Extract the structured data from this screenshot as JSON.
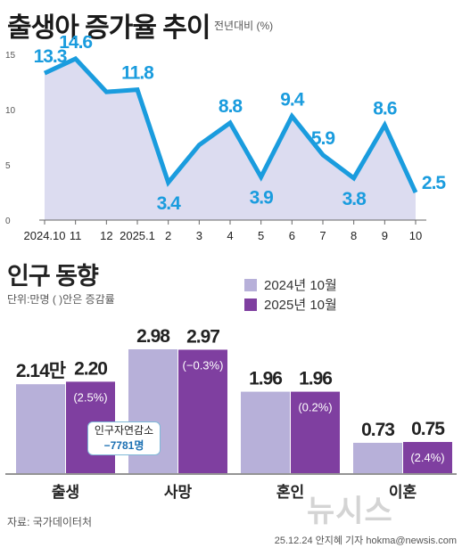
{
  "colors": {
    "line": "#1a9cde",
    "area": "#dcdcf0",
    "bar2024": "#b7b0d9",
    "bar2025": "#7f3fa0",
    "label_blue": "#1a9cde"
  },
  "line_chart": {
    "title": "출생아 증가율 추이",
    "unit": "전년대비  (%)"
  },
  "bar_chart": {
    "title": "인구 동향",
    "unit": "단위:만명 ( )안은 증감률",
    "legend": [
      "2024년 10월",
      "2025년 10월"
    ]
  },
  "callout": {
    "label": "인구자연감소",
    "value": "−7781명"
  },
  "footer": {
    "source": "자료: 국가데이터처",
    "credit": "25.12.24 안지혜 기자 hokma@newsis.com",
    "watermark": "뉴시스"
  },
  "chart_data": [
    {
      "type": "area",
      "title": "출생아 증가율 추이",
      "x": [
        "2024.10",
        "11",
        "12",
        "2025.1",
        "2",
        "3",
        "4",
        "5",
        "6",
        "7",
        "8",
        "9",
        "10"
      ],
      "values": [
        13.3,
        14.6,
        11.6,
        11.8,
        3.4,
        6.8,
        8.8,
        3.9,
        9.4,
        5.9,
        3.8,
        8.6,
        2.5
      ],
      "data_labels": [
        "13.3",
        "14.6",
        "",
        "11.8",
        "3.4",
        "",
        "8.8",
        "3.9",
        "9.4",
        "5.9",
        "3.8",
        "8.6",
        "2.5"
      ],
      "y_ticks": [
        0,
        5,
        10,
        15
      ],
      "ylim": [
        0,
        16
      ],
      "grid": false
    },
    {
      "type": "bar",
      "title": "인구 동향",
      "categories": [
        "출생",
        "사망",
        "혼인",
        "이혼"
      ],
      "series": [
        {
          "name": "2024년 10월",
          "values": [
            2.14,
            2.98,
            1.96,
            0.73
          ],
          "labels": [
            "2.14만",
            "2.98",
            "1.96",
            "0.73"
          ]
        },
        {
          "name": "2025년 10월",
          "values": [
            2.2,
            2.97,
            1.96,
            0.75
          ],
          "labels": [
            "2.20",
            "2.97",
            "1.96",
            "0.75"
          ],
          "change_labels": [
            "(2.5%)",
            "(−0.3%)",
            "(0.2%)",
            "(2.4%)"
          ]
        }
      ],
      "legend": "top-right"
    }
  ]
}
